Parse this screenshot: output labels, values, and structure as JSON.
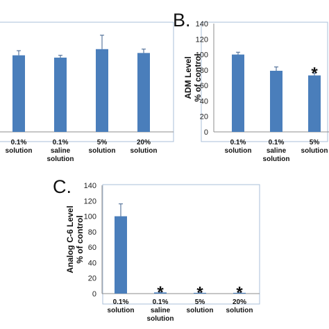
{
  "chart_data": [
    {
      "type": "bar",
      "panel": "",
      "ylabel_lines": [],
      "categories": [
        [
          "0.1%",
          "solution"
        ],
        [
          "0.1%",
          "saline",
          "solution"
        ],
        [
          "5%",
          "solution"
        ],
        [
          "20%",
          "solution"
        ]
      ],
      "values": [
        99,
        96,
        107,
        102
      ],
      "errors": [
        6,
        3,
        18,
        5
      ],
      "significant": [
        false,
        false,
        false,
        false
      ],
      "ylim": [
        0,
        140
      ],
      "yticks": []
    },
    {
      "type": "bar",
      "panel": "B.",
      "ylabel_lines": [
        "ADM Level",
        "% of control"
      ],
      "categories": [
        [
          "0.1%",
          "solution"
        ],
        [
          "0.1%",
          "saline",
          "solution"
        ],
        [
          "5%",
          "solution"
        ]
      ],
      "values": [
        100,
        79,
        73
      ],
      "errors": [
        3,
        5,
        3
      ],
      "significant": [
        false,
        false,
        true
      ],
      "ylim": [
        0,
        140
      ],
      "yticks": [
        0,
        20,
        40,
        60,
        80,
        100,
        120,
        140
      ]
    },
    {
      "type": "bar",
      "panel": "C.",
      "ylabel_lines": [
        "Analog C-6 Level",
        "% of control"
      ],
      "categories": [
        [
          "0.1%",
          "solution"
        ],
        [
          "0.1%",
          "saline",
          "solution"
        ],
        [
          "5%",
          "solution"
        ],
        [
          "20%",
          "solution"
        ]
      ],
      "values": [
        100,
        1.5,
        1,
        1
      ],
      "errors": [
        16,
        0.5,
        0.5,
        0.5
      ],
      "significant": [
        false,
        true,
        true,
        true
      ],
      "ylim": [
        0,
        140
      ],
      "yticks": [
        0,
        20,
        40,
        60,
        80,
        100,
        120,
        140
      ]
    }
  ]
}
